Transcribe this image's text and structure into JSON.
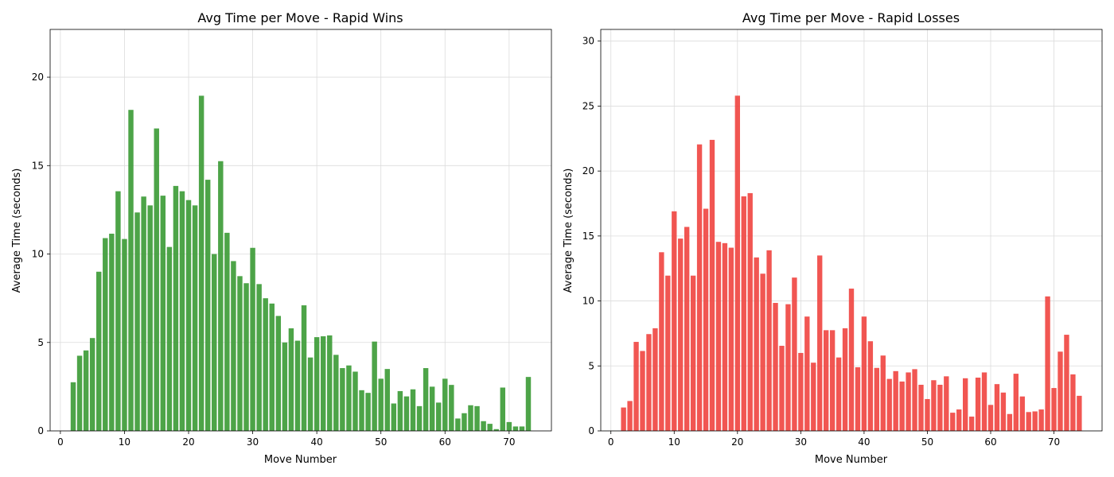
{
  "chart_data": [
    {
      "type": "bar",
      "title": "Avg Time per Move - Rapid Wins",
      "xlabel": "Move Number",
      "ylabel": "Average Time (seconds)",
      "color": "#3a9a34",
      "xlim": [
        -1.6,
        76.6
      ],
      "ylim": [
        0,
        22.7
      ],
      "xticks": [
        0,
        10,
        20,
        30,
        40,
        50,
        60,
        70
      ],
      "yticks": [
        0,
        5,
        10,
        15,
        20
      ],
      "grid": true,
      "x": [
        2,
        3,
        4,
        5,
        6,
        7,
        8,
        9,
        10,
        11,
        12,
        13,
        14,
        15,
        16,
        17,
        18,
        19,
        20,
        21,
        22,
        23,
        24,
        25,
        26,
        27,
        28,
        29,
        30,
        31,
        32,
        33,
        34,
        35,
        36,
        37,
        38,
        39,
        40,
        41,
        42,
        43,
        44,
        45,
        46,
        47,
        48,
        49,
        50,
        51,
        52,
        53,
        54,
        55,
        56,
        57,
        58,
        59,
        60,
        61,
        62,
        63,
        64,
        65,
        66,
        67,
        68,
        69,
        70,
        71,
        72,
        73
      ],
      "values": [
        2.75,
        4.25,
        4.55,
        5.25,
        9.0,
        10.9,
        11.15,
        13.55,
        10.85,
        18.15,
        12.35,
        13.25,
        12.75,
        17.1,
        13.3,
        10.4,
        13.85,
        13.55,
        13.05,
        12.75,
        18.95,
        14.2,
        10.0,
        15.25,
        11.2,
        9.6,
        8.75,
        8.35,
        10.35,
        8.3,
        7.5,
        7.2,
        6.5,
        5.0,
        5.8,
        5.1,
        7.1,
        4.15,
        5.3,
        5.35,
        5.4,
        4.3,
        3.55,
        3.7,
        3.35,
        2.3,
        2.15,
        5.05,
        2.95,
        3.5,
        1.55,
        2.25,
        1.95,
        2.35,
        1.4,
        3.55,
        2.5,
        1.6,
        2.95,
        2.6,
        0.7,
        1.0,
        1.45,
        1.4,
        0.55,
        0.4,
        0.1,
        2.45,
        0.5,
        0.25,
        0.25,
        3.05
      ]
    },
    {
      "type": "bar",
      "title": "Avg Time per Move - Rapid Losses",
      "xlabel": "Move Number",
      "ylabel": "Average Time (seconds)",
      "color": "#f0443f",
      "xlim": [
        -1.6,
        77.6
      ],
      "ylim": [
        0,
        30.9
      ],
      "xticks": [
        0,
        10,
        20,
        30,
        40,
        50,
        60,
        70
      ],
      "yticks": [
        0,
        5,
        10,
        15,
        20,
        25,
        30
      ],
      "grid": true,
      "x": [
        2,
        3,
        4,
        5,
        6,
        7,
        8,
        9,
        10,
        11,
        12,
        13,
        14,
        15,
        16,
        17,
        18,
        19,
        20,
        21,
        22,
        23,
        24,
        25,
        26,
        27,
        28,
        29,
        30,
        31,
        32,
        33,
        34,
        35,
        36,
        37,
        38,
        39,
        40,
        41,
        42,
        43,
        44,
        45,
        46,
        47,
        48,
        49,
        50,
        51,
        52,
        53,
        54,
        55,
        56,
        57,
        58,
        59,
        60,
        61,
        62,
        63,
        64,
        65,
        66,
        67,
        68,
        69,
        70,
        71,
        72,
        73,
        74
      ],
      "values": [
        1.8,
        2.3,
        6.85,
        6.15,
        7.45,
        7.9,
        13.75,
        11.95,
        16.9,
        14.8,
        15.7,
        11.95,
        22.05,
        17.1,
        22.4,
        14.55,
        14.45,
        14.1,
        25.8,
        18.05,
        18.3,
        13.35,
        12.1,
        13.9,
        9.85,
        6.55,
        9.75,
        11.8,
        6.0,
        8.8,
        5.25,
        13.5,
        7.75,
        7.75,
        5.65,
        7.9,
        10.95,
        4.9,
        8.8,
        6.9,
        4.85,
        5.8,
        4.0,
        4.6,
        3.8,
        4.5,
        4.75,
        3.55,
        2.45,
        3.9,
        3.55,
        4.2,
        1.4,
        1.65,
        4.05,
        1.1,
        4.1,
        4.5,
        2.0,
        3.6,
        2.95,
        1.3,
        4.4,
        2.65,
        1.45,
        1.5,
        1.65,
        10.35,
        3.3,
        6.1,
        7.4,
        4.35,
        2.7
      ]
    }
  ]
}
